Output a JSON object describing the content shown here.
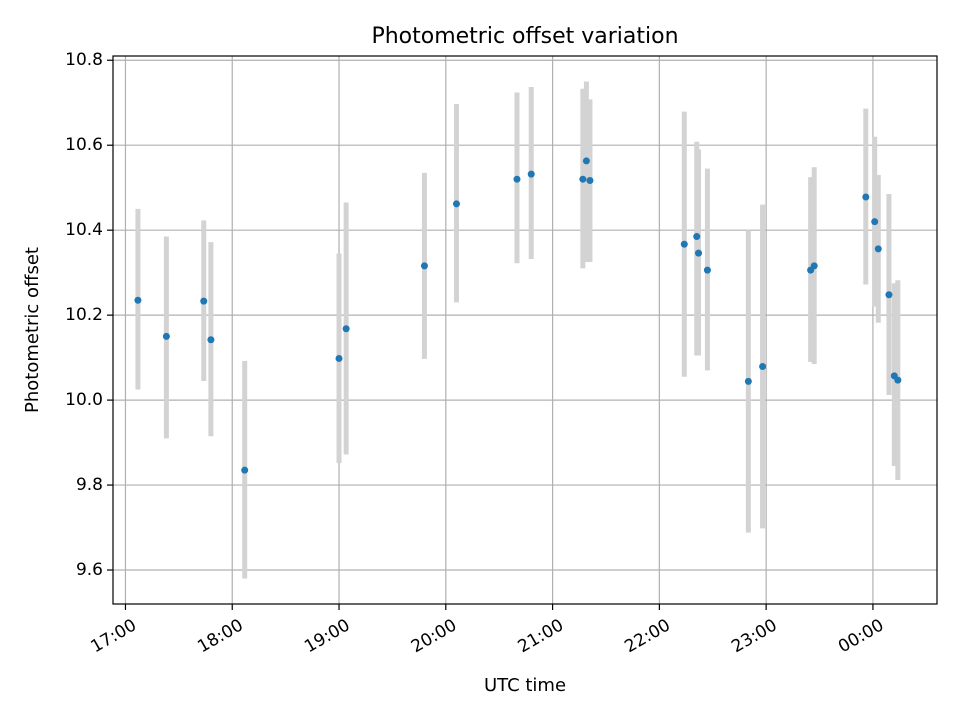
{
  "chart_data": {
    "type": "scatter",
    "title": "Photometric offset variation",
    "xlabel": "UTC time",
    "ylabel": "Photometric offset",
    "x_is_time": true,
    "xlim": [
      "16:53",
      "00:36"
    ],
    "ylim": [
      9.52,
      10.81
    ],
    "x_ticks": [
      "17:00",
      "18:00",
      "19:00",
      "20:00",
      "21:00",
      "22:00",
      "23:00",
      "00:00"
    ],
    "y_ticks": [
      9.6,
      9.8,
      10.0,
      10.2,
      10.4,
      10.6,
      10.8
    ],
    "grid": true,
    "marker_color": "#1f77b4",
    "errorbar_color": "#d3d3d3",
    "points": [
      {
        "time": "17:07",
        "value": 10.235,
        "low": 10.025,
        "high": 10.45
      },
      {
        "time": "17:23",
        "value": 10.15,
        "low": 9.91,
        "high": 10.385
      },
      {
        "time": "17:44",
        "value": 10.233,
        "low": 10.045,
        "high": 10.423
      },
      {
        "time": "17:48",
        "value": 10.142,
        "low": 9.915,
        "high": 10.372
      },
      {
        "time": "18:07",
        "value": 9.835,
        "low": 9.58,
        "high": 10.092
      },
      {
        "time": "19:00",
        "value": 10.098,
        "low": 9.852,
        "high": 10.345
      },
      {
        "time": "19:04",
        "value": 10.168,
        "low": 9.872,
        "high": 10.465
      },
      {
        "time": "19:48",
        "value": 10.316,
        "low": 10.097,
        "high": 10.535
      },
      {
        "time": "20:06",
        "value": 10.462,
        "low": 10.23,
        "high": 10.697
      },
      {
        "time": "20:40",
        "value": 10.52,
        "low": 10.322,
        "high": 10.724
      },
      {
        "time": "20:48",
        "value": 10.532,
        "low": 10.332,
        "high": 10.737
      },
      {
        "time": "21:17",
        "value": 10.52,
        "low": 10.31,
        "high": 10.733
      },
      {
        "time": "21:19",
        "value": 10.563,
        "low": 10.325,
        "high": 10.75
      },
      {
        "time": "21:21",
        "value": 10.517,
        "low": 10.325,
        "high": 10.708
      },
      {
        "time": "22:14",
        "value": 10.367,
        "low": 10.055,
        "high": 10.679
      },
      {
        "time": "22:21",
        "value": 10.385,
        "low": 10.105,
        "high": 10.608
      },
      {
        "time": "22:22",
        "value": 10.346,
        "low": 10.105,
        "high": 10.59
      },
      {
        "time": "22:27",
        "value": 10.306,
        "low": 10.07,
        "high": 10.545
      },
      {
        "time": "22:50",
        "value": 10.044,
        "low": 9.688,
        "high": 10.4
      },
      {
        "time": "22:58",
        "value": 10.079,
        "low": 9.698,
        "high": 10.46
      },
      {
        "time": "23:25",
        "value": 10.306,
        "low": 10.09,
        "high": 10.525
      },
      {
        "time": "23:27",
        "value": 10.316,
        "low": 10.085,
        "high": 10.548
      },
      {
        "time": "23:56",
        "value": 10.478,
        "low": 10.272,
        "high": 10.686
      },
      {
        "time": "00:01",
        "value": 10.42,
        "low": 10.22,
        "high": 10.62
      },
      {
        "time": "00:03",
        "value": 10.356,
        "low": 10.182,
        "high": 10.53
      },
      {
        "time": "00:09",
        "value": 10.248,
        "low": 10.012,
        "high": 10.485
      },
      {
        "time": "00:12",
        "value": 10.057,
        "low": 9.845,
        "high": 10.275
      },
      {
        "time": "00:14",
        "value": 10.047,
        "low": 9.812,
        "high": 10.282
      }
    ]
  }
}
